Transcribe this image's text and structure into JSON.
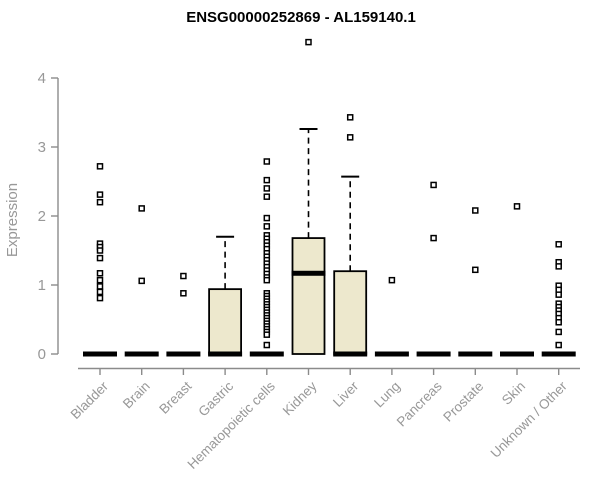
{
  "chart_data": {
    "type": "box",
    "title": "ENSG00000252869 - AL159140.1",
    "ylabel": "Expression",
    "xlabel": "",
    "ylim": [
      0,
      4
    ],
    "yticks": [
      0,
      1,
      2,
      3,
      4
    ],
    "grid": false,
    "legend": "none",
    "box_fill": "#EDE8CD",
    "box_stroke": "#000000",
    "axis_color": "#8b8b8b",
    "label_color": "#989898",
    "categories": [
      "Bladder",
      "Brain",
      "Breast",
      "Gastric",
      "Hematopoietic cells",
      "Kidney",
      "Liver",
      "Lung",
      "Pancreas",
      "Prostate",
      "Skin",
      "Unknown / Other"
    ],
    "boxes": [
      {
        "name": "Bladder",
        "q1": 0,
        "median": 0,
        "q3": 0,
        "whisker_low": 0,
        "whisker_high": 0,
        "outliers": [
          2.72,
          2.31,
          2.2,
          1.6,
          1.55,
          1.5,
          1.39,
          1.17,
          1.07,
          0.98,
          0.9,
          0.81
        ]
      },
      {
        "name": "Brain",
        "q1": 0,
        "median": 0,
        "q3": 0,
        "whisker_low": 0,
        "whisker_high": 0,
        "outliers": [
          2.11,
          1.06
        ]
      },
      {
        "name": "Breast",
        "q1": 0,
        "median": 0,
        "q3": 0,
        "whisker_low": 0,
        "whisker_high": 0,
        "outliers": [
          1.13,
          0.88
        ]
      },
      {
        "name": "Gastric",
        "q1": 0,
        "median": 0,
        "q3": 0.94,
        "whisker_low": 0,
        "whisker_high": 1.7,
        "outliers": []
      },
      {
        "name": "Hematopoietic cells",
        "q1": 0,
        "median": 0,
        "q3": 0,
        "whisker_low": 0,
        "whisker_high": 0,
        "outliers": [
          2.79,
          2.52,
          2.4,
          2.28,
          1.97,
          1.85,
          1.72,
          1.67,
          1.62,
          1.57,
          1.52,
          1.46,
          1.41,
          1.36,
          1.31,
          1.26,
          1.21,
          1.16,
          1.11,
          1.07,
          0.88,
          0.84,
          0.8,
          0.76,
          0.72,
          0.68,
          0.64,
          0.6,
          0.56,
          0.52,
          0.48,
          0.44,
          0.4,
          0.36,
          0.32,
          0.28,
          0.13
        ]
      },
      {
        "name": "Kidney",
        "q1": 0,
        "median": 1.17,
        "q3": 1.68,
        "whisker_low": 0,
        "whisker_high": 3.26,
        "outliers": [
          4.52
        ]
      },
      {
        "name": "Liver",
        "q1": 0,
        "median": 0,
        "q3": 1.2,
        "whisker_low": 0,
        "whisker_high": 2.57,
        "outliers": [
          3.43,
          3.14
        ]
      },
      {
        "name": "Lung",
        "q1": 0,
        "median": 0,
        "q3": 0,
        "whisker_low": 0,
        "whisker_high": 0,
        "outliers": [
          1.07
        ]
      },
      {
        "name": "Pancreas",
        "q1": 0,
        "median": 0,
        "q3": 0,
        "whisker_low": 0,
        "whisker_high": 0,
        "outliers": [
          2.45,
          1.68
        ]
      },
      {
        "name": "Prostate",
        "q1": 0,
        "median": 0,
        "q3": 0,
        "whisker_low": 0,
        "whisker_high": 0,
        "outliers": [
          2.08,
          1.22
        ]
      },
      {
        "name": "Skin",
        "q1": 0,
        "median": 0,
        "q3": 0,
        "whisker_low": 0,
        "whisker_high": 0,
        "outliers": [
          2.14
        ]
      },
      {
        "name": "Unknown / Other",
        "q1": 0,
        "median": 0,
        "q3": 0,
        "whisker_low": 0,
        "whisker_high": 0,
        "outliers": [
          1.59,
          1.33,
          1.27,
          0.99,
          0.93,
          0.86,
          0.73,
          0.68,
          0.63,
          0.58,
          0.52,
          0.46,
          0.32,
          0.13
        ]
      }
    ]
  }
}
